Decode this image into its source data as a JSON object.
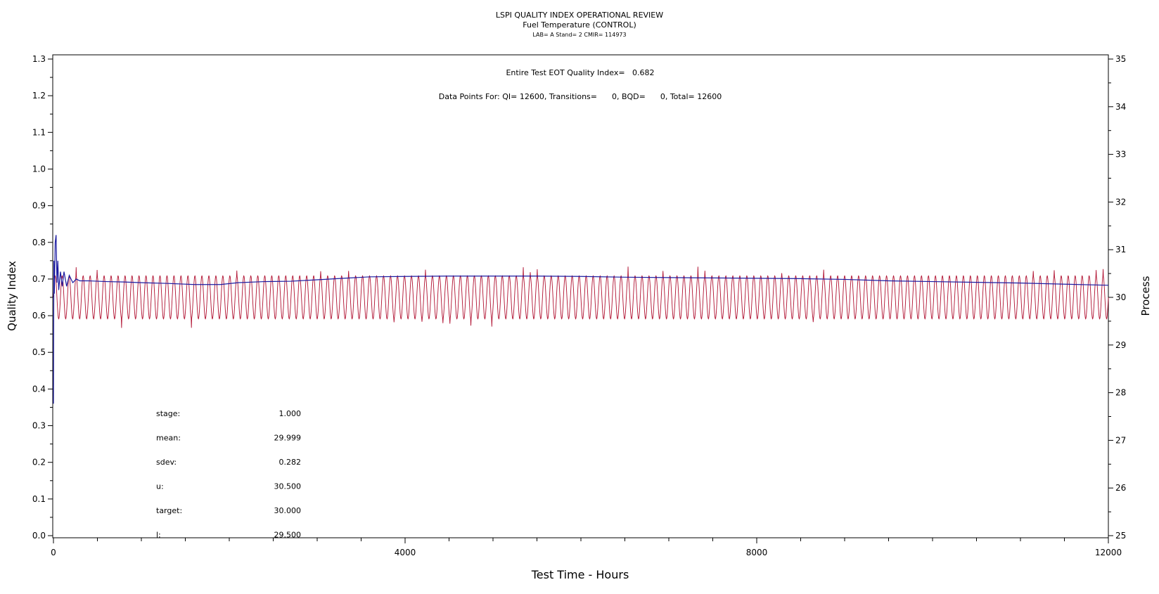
{
  "chart_data": {
    "type": "line",
    "title": "LSPI QUALITY INDEX OPERATIONAL REVIEW",
    "subtitle": "Fuel Temperature (CONTROL)",
    "subtitle2": "LAB= A Stand= 2 CMIR= 114973",
    "annotation_top1": "Entire Test EOT Quality Index=   0.682",
    "annotation_top2": "Data Points For: QI= 12600, Transitions=      0, BQD=      0, Total= 12600",
    "xlabel": "Test Time - Hours",
    "ylabel_left": "Quality Index",
    "ylabel_right": "Process",
    "xlim": [
      0,
      12000
    ],
    "ylim_left": [
      0,
      1.3
    ],
    "ylim_right": [
      25,
      35
    ],
    "x_ticks": [
      "0",
      "4000",
      "8000",
      "12000"
    ],
    "x_tick_values": [
      0,
      4000,
      8000,
      12000
    ],
    "y_left_ticks": [
      "0.0",
      "0.1",
      "0.2",
      "0.3",
      "0.4",
      "0.5",
      "0.6",
      "0.7",
      "0.8",
      "0.9",
      "1.0",
      "1.1",
      "1.2",
      "1.3"
    ],
    "y_right_ticks": [
      "25",
      "26",
      "27",
      "28",
      "29",
      "30",
      "31",
      "32",
      "33",
      "34",
      "35"
    ],
    "stats": [
      {
        "label": "stage:",
        "value": "1.000"
      },
      {
        "label": "mean:",
        "value": "29.999"
      },
      {
        "label": "sdev:",
        "value": "0.282"
      },
      {
        "label": "u:",
        "value": "30.500"
      },
      {
        "label": "target:",
        "value": "30.000"
      },
      {
        "label": "l:",
        "value": "29.500"
      }
    ],
    "series": [
      {
        "axis": "left",
        "color": "#1a1aa0",
        "x": [
          0,
          5,
          10,
          20,
          30,
          40,
          50,
          60,
          80,
          100,
          120,
          150,
          180,
          220,
          260,
          300,
          400,
          600,
          800,
          1000,
          1300,
          1600,
          1900,
          2100,
          2400,
          2700,
          3000,
          3300,
          3600,
          4000,
          4500,
          5000,
          5500,
          6000,
          6500,
          7000,
          7500,
          8000,
          8500,
          9000,
          9500,
          10000,
          10500,
          11000,
          11500,
          12000
        ],
        "y": [
          0.36,
          0.75,
          0.66,
          0.8,
          0.82,
          0.69,
          0.75,
          0.67,
          0.72,
          0.68,
          0.72,
          0.68,
          0.71,
          0.69,
          0.7,
          0.695,
          0.695,
          0.693,
          0.692,
          0.69,
          0.688,
          0.685,
          0.685,
          0.69,
          0.693,
          0.694,
          0.698,
          0.702,
          0.706,
          0.707,
          0.708,
          0.708,
          0.708,
          0.707,
          0.705,
          0.704,
          0.703,
          0.702,
          0.701,
          0.699,
          0.695,
          0.693,
          0.691,
          0.689,
          0.686,
          0.683
        ]
      },
      {
        "axis": "right",
        "color": "#b01030",
        "mean": 30.0,
        "amplitude": 0.45,
        "cycles": 151,
        "description_note": ""
      }
    ]
  }
}
